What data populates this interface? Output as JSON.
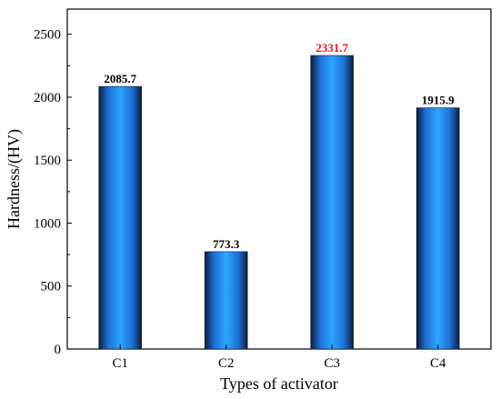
{
  "chart_data": {
    "type": "bar",
    "title": "",
    "xlabel": "Types of activator",
    "ylabel": "Hardness/(HV)",
    "categories": [
      "C1",
      "C2",
      "C3",
      "C4"
    ],
    "values": [
      2085.7,
      773.3,
      2331.7,
      1915.9
    ],
    "data_labels": [
      "2085.7",
      "773.3",
      "2331.7",
      "1915.9"
    ],
    "highlighted_category": "C3",
    "ylim": [
      0,
      2700
    ],
    "yticks": [
      0,
      500,
      1000,
      1500,
      2000,
      2500
    ],
    "ytick_labels": [
      "0",
      "500",
      "1000",
      "1500",
      "2000",
      "2500"
    ],
    "grid": false,
    "legend": "none",
    "colors": {
      "bar_dark": "#0a1e3c",
      "bar_mid": "#1f6fd6",
      "bar_light": "#2aa6ff",
      "label_default": "#000000",
      "label_highlight": "#e8141b"
    }
  }
}
